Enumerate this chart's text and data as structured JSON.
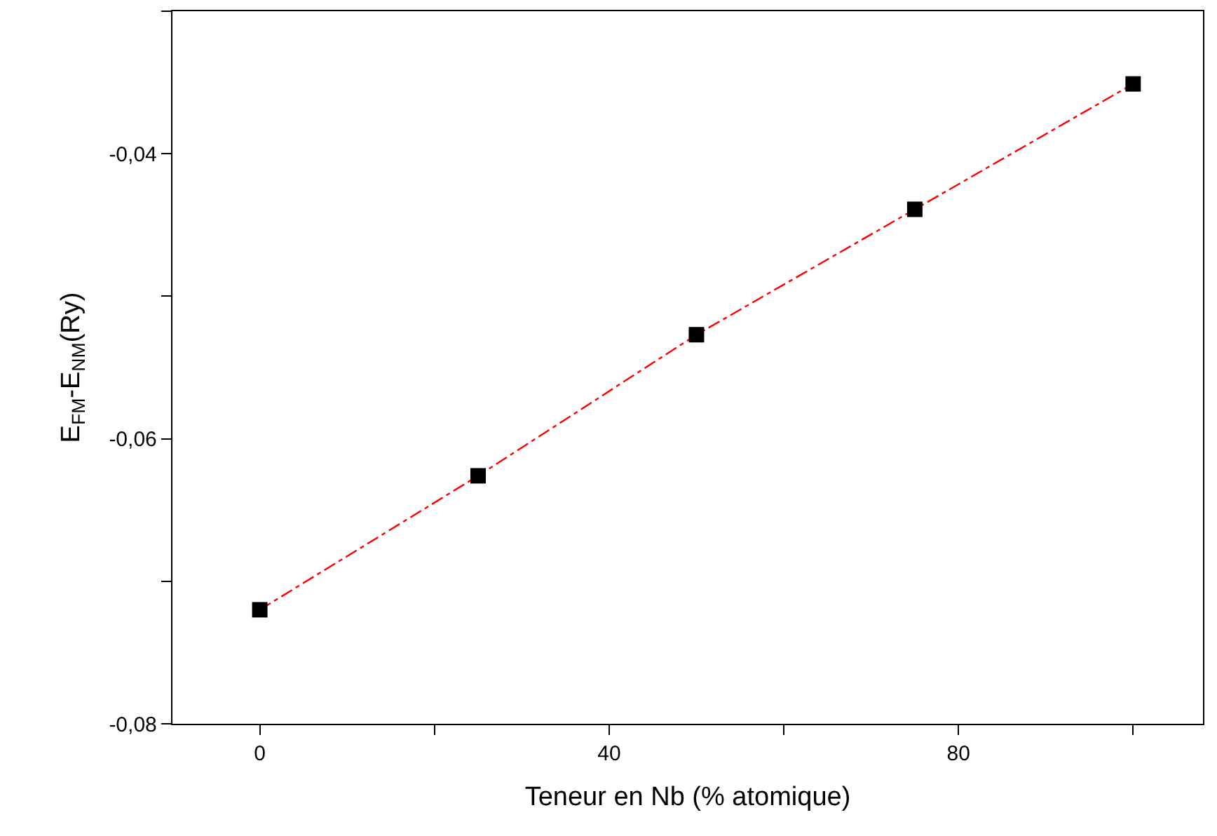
{
  "chart_data": {
    "type": "line",
    "xlabel": "Teneur en Nb (% atomique)",
    "ylabel": "E$_{FM}$-E$_{NM}$(Ry)",
    "x": [
      0,
      25,
      50,
      75,
      100
    ],
    "series": [
      {
        "color": "#ff0000",
        "line_style": "dashdot",
        "marker": "none",
        "values": [
          -0.072,
          -0.0626,
          -0.0527,
          -0.0439,
          -0.0351
        ]
      },
      {
        "type": "scatter",
        "color": "#000000",
        "marker": "square",
        "values": [
          -0.072,
          -0.0626,
          -0.0527,
          -0.0439,
          -0.0351
        ]
      }
    ],
    "xlim": [
      -10,
      108
    ],
    "xticks": [
      0,
      {
        "value": 20,
        "label": null
      },
      40,
      {
        "value": 60,
        "label": null
      },
      80,
      {
        "value": 100,
        "label": null
      }
    ],
    "ylim": [
      -0.08,
      -0.03
    ],
    "yticks": [
      {
        "value": -0.08,
        "label": "-0,08"
      },
      {
        "value": -0.07,
        "label": null
      },
      {
        "value": -0.06,
        "label": "-0,06"
      },
      {
        "value": -0.05,
        "label": null
      },
      {
        "value": -0.04,
        "label": "-0,04"
      },
      {
        "value": -0.03,
        "label": null
      }
    ]
  }
}
